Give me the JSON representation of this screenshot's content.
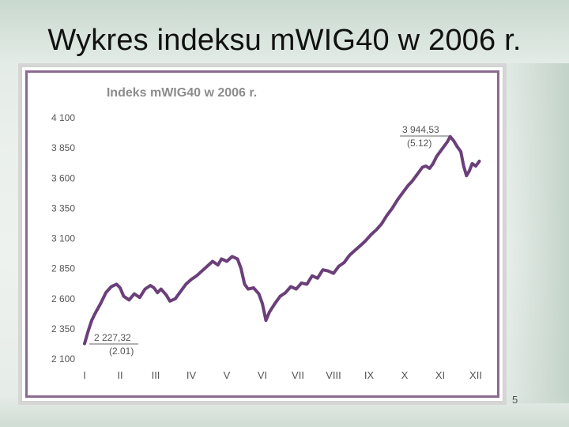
{
  "slide": {
    "title": "Wykres indeksu mWIG40 w 2006 r.",
    "page_number": "5"
  },
  "chart_data": {
    "type": "line",
    "title": "Indeks mWIG40 w 2006 r.",
    "xlabel": "",
    "ylabel": "",
    "x_categories": [
      "I",
      "II",
      "III",
      "IV",
      "V",
      "VI",
      "VII",
      "VIII",
      "IX",
      "X",
      "XI",
      "XII"
    ],
    "yticks": [
      "4 100",
      "3 850",
      "3 600",
      "3 350",
      "3 100",
      "2 850",
      "2 600",
      "2 350",
      "2 100"
    ],
    "ylim": [
      2100,
      4100
    ],
    "grid": false,
    "line_color": "#6b3f7a",
    "series": [
      {
        "points": [
          [
            0.0,
            2227
          ],
          [
            0.1,
            2330
          ],
          [
            0.2,
            2420
          ],
          [
            0.3,
            2480
          ],
          [
            0.45,
            2560
          ],
          [
            0.6,
            2650
          ],
          [
            0.75,
            2700
          ],
          [
            0.9,
            2720
          ],
          [
            1.0,
            2690
          ],
          [
            1.1,
            2620
          ],
          [
            1.25,
            2590
          ],
          [
            1.4,
            2640
          ],
          [
            1.55,
            2610
          ],
          [
            1.7,
            2680
          ],
          [
            1.85,
            2710
          ],
          [
            1.95,
            2690
          ],
          [
            2.05,
            2650
          ],
          [
            2.15,
            2680
          ],
          [
            2.3,
            2630
          ],
          [
            2.4,
            2580
          ],
          [
            2.55,
            2600
          ],
          [
            2.7,
            2660
          ],
          [
            2.85,
            2720
          ],
          [
            3.0,
            2760
          ],
          [
            3.15,
            2790
          ],
          [
            3.3,
            2830
          ],
          [
            3.45,
            2870
          ],
          [
            3.6,
            2910
          ],
          [
            3.75,
            2880
          ],
          [
            3.85,
            2930
          ],
          [
            4.0,
            2910
          ],
          [
            4.15,
            2950
          ],
          [
            4.3,
            2930
          ],
          [
            4.4,
            2850
          ],
          [
            4.5,
            2720
          ],
          [
            4.6,
            2680
          ],
          [
            4.75,
            2690
          ],
          [
            4.9,
            2640
          ],
          [
            5.0,
            2560
          ],
          [
            5.1,
            2420
          ],
          [
            5.2,
            2490
          ],
          [
            5.35,
            2560
          ],
          [
            5.5,
            2620
          ],
          [
            5.65,
            2650
          ],
          [
            5.8,
            2700
          ],
          [
            5.95,
            2680
          ],
          [
            6.1,
            2730
          ],
          [
            6.25,
            2720
          ],
          [
            6.4,
            2790
          ],
          [
            6.55,
            2770
          ],
          [
            6.7,
            2840
          ],
          [
            6.85,
            2830
          ],
          [
            7.0,
            2810
          ],
          [
            7.15,
            2870
          ],
          [
            7.3,
            2900
          ],
          [
            7.45,
            2960
          ],
          [
            7.6,
            3000
          ],
          [
            7.75,
            3040
          ],
          [
            7.9,
            3080
          ],
          [
            8.05,
            3130
          ],
          [
            8.2,
            3170
          ],
          [
            8.35,
            3220
          ],
          [
            8.5,
            3290
          ],
          [
            8.65,
            3350
          ],
          [
            8.8,
            3420
          ],
          [
            8.95,
            3480
          ],
          [
            9.1,
            3540
          ],
          [
            9.2,
            3570
          ],
          [
            9.35,
            3630
          ],
          [
            9.5,
            3690
          ],
          [
            9.6,
            3700
          ],
          [
            9.7,
            3680
          ],
          [
            9.8,
            3720
          ],
          [
            9.9,
            3780
          ],
          [
            10.0,
            3820
          ],
          [
            10.1,
            3860
          ],
          [
            10.2,
            3900
          ],
          [
            10.28,
            3944.53
          ],
          [
            10.38,
            3910
          ],
          [
            10.48,
            3860
          ],
          [
            10.58,
            3820
          ],
          [
            10.66,
            3700
          ],
          [
            10.74,
            3620
          ],
          [
            10.82,
            3660
          ],
          [
            10.9,
            3720
          ],
          [
            11.0,
            3700
          ],
          [
            11.1,
            3740
          ]
        ]
      }
    ],
    "annotations": [
      {
        "value": "3 944,53",
        "date": "(5.12)"
      },
      {
        "value": "2 227,32",
        "date": "(2.01)"
      }
    ]
  }
}
